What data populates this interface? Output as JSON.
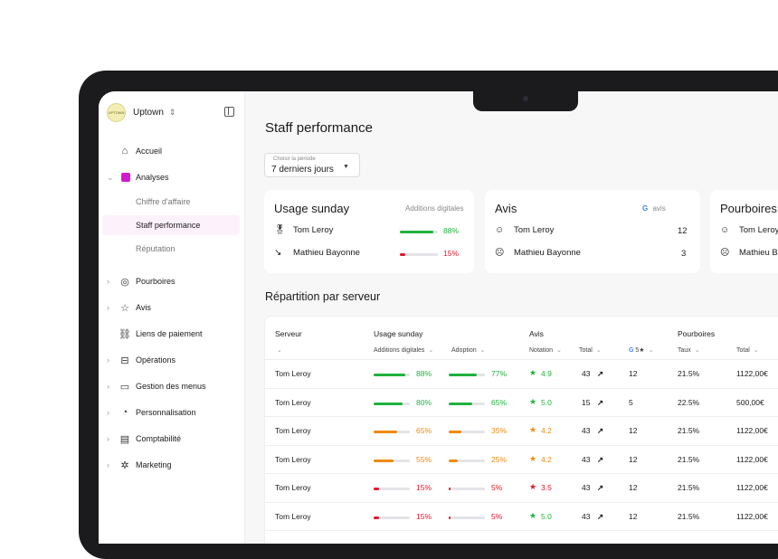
{
  "colors": {
    "green": "#1fb23f",
    "orange": "#ef8a10",
    "red": "#e0162b",
    "accent": "#d21ad0"
  },
  "sidebar": {
    "brand": {
      "logo_text": "UPTOWN",
      "name": "Uptown",
      "switch_icon": "chevron-up-down-icon",
      "collapse_icon": "sidebar-toggle-icon"
    },
    "items": [
      {
        "label": "Accueil",
        "icon": "home-icon",
        "expandable": false
      },
      {
        "label": "Analyses",
        "icon": "analytics-icon",
        "expandable": true,
        "expanded": true
      },
      {
        "label": "Pourboires",
        "icon": "tips-icon",
        "expandable": true
      },
      {
        "label": "Avis",
        "icon": "star-icon",
        "expandable": true
      },
      {
        "label": "Liens de paiement",
        "icon": "link-icon",
        "expandable": false
      },
      {
        "label": "Opérations",
        "icon": "operations-icon",
        "expandable": true
      },
      {
        "label": "Gestion des menus",
        "icon": "book-icon",
        "expandable": true
      },
      {
        "label": "Personnalisation",
        "icon": "palette-icon",
        "expandable": true
      },
      {
        "label": "Comptabilité",
        "icon": "document-icon",
        "expandable": true
      },
      {
        "label": "Marketing",
        "icon": "badge-icon",
        "expandable": true
      }
    ],
    "analyses_sub": [
      {
        "label": "Chiffre d'affaire",
        "active": false
      },
      {
        "label": "Staff performance",
        "active": true
      },
      {
        "label": "Réputation",
        "active": false
      }
    ]
  },
  "main": {
    "title": "Staff performance",
    "period": {
      "label": "Choisir la période",
      "value": "7 derniers jours"
    },
    "cards": {
      "usage": {
        "title": "Usage sunday",
        "hint": "Additions digitales",
        "rows": [
          {
            "icon": "medal-icon",
            "name": "Tom Leroy",
            "percent": "88%",
            "fill": 0.88,
            "color": "green"
          },
          {
            "icon": "trend-down-icon",
            "name": "Mathieu Bayonne",
            "percent": "15%",
            "fill": 0.15,
            "color": "red"
          }
        ]
      },
      "avis": {
        "title": "Avis",
        "hint": "avis",
        "hint_icon": "google-icon",
        "rows": [
          {
            "icon": "smile-icon",
            "name": "Tom Leroy",
            "value": "12"
          },
          {
            "icon": "frown-icon",
            "name": "Mathieu Bayonne",
            "value": "3"
          }
        ]
      },
      "pourboires": {
        "title": "Pourboires",
        "rows": [
          {
            "icon": "smile-icon",
            "name": "Tom Leroy"
          },
          {
            "icon": "frown-icon",
            "name": "Mathieu B"
          }
        ]
      }
    },
    "section_title": "Répartition par serveur",
    "table": {
      "groups": {
        "serveur": "Serveur",
        "usage": "Usage sunday",
        "avis": "Avis",
        "pourboires": "Pourboires"
      },
      "subheaders": {
        "additions": "Additions digitales",
        "adoption": "Adoption",
        "notation": "Notation",
        "total": "Total",
        "g5": "5★",
        "taux": "Taux",
        "total2": "Total"
      },
      "rows": [
        {
          "name": "Tom Leroy",
          "add": "88%",
          "add_v": 0.88,
          "add_c": "green",
          "adop": "77%",
          "adop_v": 0.77,
          "adop_c": "green",
          "note": "4.9",
          "note_c": "green",
          "total": "43",
          "g5": "12",
          "taux": "21.5%",
          "total2": "1122,00€"
        },
        {
          "name": "Tom Leroy",
          "add": "80%",
          "add_v": 0.8,
          "add_c": "green",
          "adop": "65%",
          "adop_v": 0.65,
          "adop_c": "green",
          "note": "5.0",
          "note_c": "green",
          "total": "15",
          "g5": "5",
          "taux": "22.5%",
          "total2": "500,00€"
        },
        {
          "name": "Tom Leroy",
          "add": "65%",
          "add_v": 0.65,
          "add_c": "orange",
          "adop": "35%",
          "adop_v": 0.35,
          "adop_c": "orange",
          "note": "4.2",
          "note_c": "orange",
          "total": "43",
          "g5": "12",
          "taux": "21.5%",
          "total2": "1122,00€"
        },
        {
          "name": "Tom Leroy",
          "add": "55%",
          "add_v": 0.55,
          "add_c": "orange",
          "adop": "25%",
          "adop_v": 0.25,
          "adop_c": "orange",
          "note": "4.2",
          "note_c": "orange",
          "total": "43",
          "g5": "12",
          "taux": "21.5%",
          "total2": "1122,00€"
        },
        {
          "name": "Tom Leroy",
          "add": "15%",
          "add_v": 0.15,
          "add_c": "red",
          "adop": "5%",
          "adop_v": 0.05,
          "adop_c": "red",
          "note": "3.5",
          "note_c": "red",
          "total": "43",
          "g5": "12",
          "taux": "21.5%",
          "total2": "1122,00€"
        },
        {
          "name": "Tom Leroy",
          "add": "15%",
          "add_v": 0.15,
          "add_c": "red",
          "adop": "5%",
          "adop_v": 0.05,
          "adop_c": "red",
          "note": "5.0",
          "note_c": "green",
          "total": "43",
          "g5": "12",
          "taux": "21.5%",
          "total2": "1122,00€"
        }
      ]
    }
  }
}
